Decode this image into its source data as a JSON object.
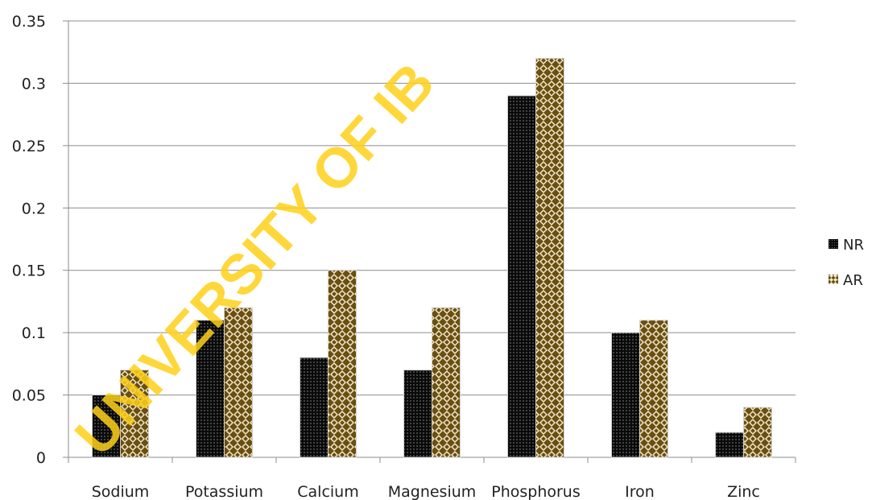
{
  "watermark": "UNIVERSITY OF IB",
  "chart_data": {
    "type": "bar",
    "categories": [
      "Sodium",
      "Potassium",
      "Calcium",
      "Magnesium",
      "Phosphorus",
      "Iron",
      "Zinc"
    ],
    "series": [
      {
        "name": "NR",
        "values": [
          0.05,
          0.11,
          0.08,
          0.07,
          0.29,
          0.1,
          0.02
        ],
        "color": "#111111",
        "pattern": "dots"
      },
      {
        "name": "AR",
        "values": [
          0.07,
          0.12,
          0.15,
          0.12,
          0.32,
          0.11,
          0.04
        ],
        "color": "#6b4f10",
        "pattern": "diamonds"
      }
    ],
    "yticks": [
      "0",
      "0.05",
      "0.1",
      "0.15",
      "0.2",
      "0.25",
      "0.3",
      "0.35"
    ],
    "ylim": [
      0,
      0.35
    ],
    "grid": true,
    "legend": "right"
  }
}
